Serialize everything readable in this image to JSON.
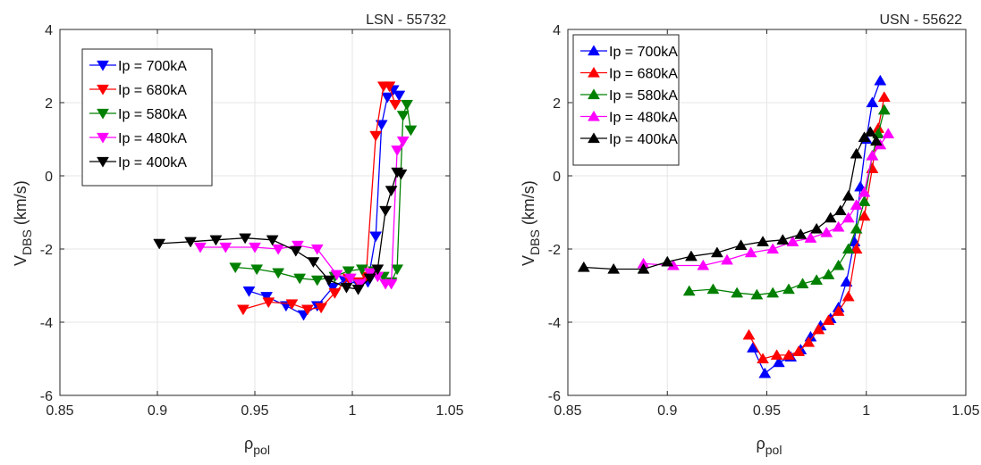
{
  "chart_data": [
    {
      "type": "line",
      "title": "LSN - 55732",
      "xlabel_main": "ρ",
      "xlabel_sub": "pol",
      "ylabel_main": "V",
      "ylabel_sub": "DBS",
      "ylabel_unit": " (km/s)",
      "xlim": [
        0.85,
        1.05
      ],
      "ylim": [
        -6,
        4
      ],
      "xticks": [
        0.85,
        0.9,
        0.95,
        1,
        1.05
      ],
      "xtick_labels": [
        "0.85",
        "0.9",
        "0.95",
        "1",
        "1.05"
      ],
      "yticks": [
        -6,
        -4,
        -2,
        0,
        2,
        4
      ],
      "ytick_labels": [
        "-6",
        "-4",
        "-2",
        "0",
        "2",
        "4"
      ],
      "grid": true,
      "legend_position": "top-left",
      "marker": "triangle-down",
      "series": [
        {
          "name": "Ip = 700kA",
          "color": "#0000ff",
          "x": [
            0.947,
            0.956,
            0.966,
            0.975,
            0.982,
            0.99,
            0.996,
            1.003,
            1.008,
            1.012,
            1.015,
            1.018,
            1.021,
            1.024
          ],
          "y": [
            -3.15,
            -3.3,
            -3.55,
            -3.8,
            -3.55,
            -3.05,
            -2.85,
            -2.95,
            -2.9,
            -1.65,
            1.4,
            2.15,
            2.35,
            2.2
          ]
        },
        {
          "name": "Ip = 680kA",
          "color": "#ff0000",
          "x": [
            0.944,
            0.957,
            0.969,
            0.977,
            0.984,
            0.991,
            0.998,
            1.003,
            1.007,
            1.012,
            1.016,
            1.019,
            1.022
          ],
          "y": [
            -3.65,
            -3.45,
            -3.5,
            -3.65,
            -3.6,
            -3.2,
            -2.8,
            -2.9,
            -2.75,
            1.1,
            2.45,
            2.45,
            1.95
          ]
        },
        {
          "name": "Ip = 580kA",
          "color": "#008000",
          "x": [
            0.94,
            0.951,
            0.962,
            0.973,
            0.982,
            0.991,
            0.998,
            1.005,
            1.011,
            1.016,
            1.02,
            1.023,
            1.026,
            1.028,
            1.03
          ],
          "y": [
            -2.5,
            -2.55,
            -2.65,
            -2.8,
            -2.85,
            -2.75,
            -2.6,
            -2.55,
            -2.6,
            -2.75,
            -2.9,
            -2.55,
            1.65,
            1.95,
            1.25
          ]
        },
        {
          "name": "Ip = 480kA",
          "color": "#ff00ff",
          "x": [
            0.922,
            0.935,
            0.95,
            0.962,
            0.972,
            0.982,
            0.992,
            0.999,
            1.004,
            1.009,
            1.013,
            1.017,
            1.02,
            1.023,
            1.026
          ],
          "y": [
            -1.95,
            -1.95,
            -1.95,
            -2.0,
            -1.9,
            -2.0,
            -2.7,
            -2.8,
            -2.95,
            -2.65,
            -2.75,
            -2.95,
            -2.95,
            0.7,
            0.95
          ]
        },
        {
          "name": "Ip = 400kA",
          "color": "#000000",
          "x": [
            0.901,
            0.917,
            0.93,
            0.945,
            0.959,
            0.971,
            0.98,
            0.988,
            0.997,
            1.003,
            1.009,
            1.013,
            1.017,
            1.02,
            1.023,
            1.025
          ],
          "y": [
            -1.85,
            -1.8,
            -1.75,
            -1.7,
            -1.75,
            -2.05,
            -2.35,
            -2.85,
            -3.05,
            -3.1,
            -2.8,
            -2.55,
            -0.95,
            -0.4,
            0.1,
            0.05
          ]
        }
      ]
    },
    {
      "type": "line",
      "title": "USN - 55622",
      "xlabel_main": "ρ",
      "xlabel_sub": "pol",
      "ylabel_main": "V",
      "ylabel_sub": "DBS",
      "ylabel_unit": " (km/s)",
      "xlim": [
        0.85,
        1.05
      ],
      "ylim": [
        -6,
        4
      ],
      "xticks": [
        0.85,
        0.9,
        0.95,
        1,
        1.05
      ],
      "xtick_labels": [
        "0.85",
        "0.9",
        "0.95",
        "1",
        "1.05"
      ],
      "yticks": [
        -6,
        -4,
        -2,
        0,
        2,
        4
      ],
      "ytick_labels": [
        "-6",
        "-4",
        "-2",
        "0",
        "2",
        "4"
      ],
      "grid": true,
      "legend_position": "top-left",
      "marker": "triangle-up",
      "series": [
        {
          "name": "Ip = 700kA",
          "color": "#0000ff",
          "x": [
            0.943,
            0.949,
            0.956,
            0.962,
            0.967,
            0.972,
            0.977,
            0.982,
            0.986,
            0.99,
            0.994,
            0.997,
            1.0,
            1.003,
            1.007
          ],
          "y": [
            -4.7,
            -5.4,
            -5.1,
            -4.95,
            -4.75,
            -4.4,
            -4.1,
            -3.9,
            -3.6,
            -2.9,
            -1.8,
            -0.3,
            1.0,
            2.0,
            2.6
          ]
        },
        {
          "name": "Ip = 680kA",
          "color": "#ff0000",
          "x": [
            0.941,
            0.948,
            0.955,
            0.961,
            0.966,
            0.971,
            0.976,
            0.981,
            0.986,
            0.991,
            0.995,
            0.999,
            1.003,
            1.006,
            1.009
          ],
          "y": [
            -4.35,
            -5.0,
            -4.9,
            -4.9,
            -4.8,
            -4.55,
            -4.2,
            -3.95,
            -3.7,
            -3.3,
            -2.0,
            -1.1,
            0.2,
            1.3,
            2.15
          ]
        },
        {
          "name": "Ip = 580kA",
          "color": "#008000",
          "x": [
            0.911,
            0.923,
            0.935,
            0.945,
            0.953,
            0.961,
            0.968,
            0.975,
            0.981,
            0.986,
            0.991,
            0.995,
            0.999,
            1.003,
            1.006,
            1.009
          ],
          "y": [
            -3.15,
            -3.1,
            -3.2,
            -3.25,
            -3.2,
            -3.1,
            -2.95,
            -2.85,
            -2.7,
            -2.45,
            -2.0,
            -1.45,
            -0.7,
            0.55,
            1.15,
            1.8
          ]
        },
        {
          "name": "Ip = 480kA",
          "color": "#ff00ff",
          "x": [
            0.888,
            0.903,
            0.918,
            0.93,
            0.942,
            0.953,
            0.963,
            0.972,
            0.98,
            0.986,
            0.991,
            0.995,
            0.999,
            1.003,
            1.007,
            1.011
          ],
          "y": [
            -2.4,
            -2.45,
            -2.45,
            -2.3,
            -2.1,
            -2.0,
            -1.8,
            -1.7,
            -1.55,
            -1.4,
            -1.15,
            -0.8,
            -0.45,
            0.55,
            0.85,
            1.15
          ]
        },
        {
          "name": "Ip = 400kA",
          "color": "#000000",
          "x": [
            0.858,
            0.873,
            0.888,
            0.9,
            0.912,
            0.925,
            0.937,
            0.948,
            0.958,
            0.967,
            0.975,
            0.982,
            0.987,
            0.991,
            0.995,
            0.999,
            1.002,
            1.005
          ],
          "y": [
            -2.5,
            -2.55,
            -2.55,
            -2.35,
            -2.2,
            -2.1,
            -1.9,
            -1.8,
            -1.75,
            -1.6,
            -1.45,
            -1.15,
            -0.95,
            -0.55,
            0.6,
            1.05,
            1.2,
            0.95
          ]
        }
      ]
    }
  ]
}
